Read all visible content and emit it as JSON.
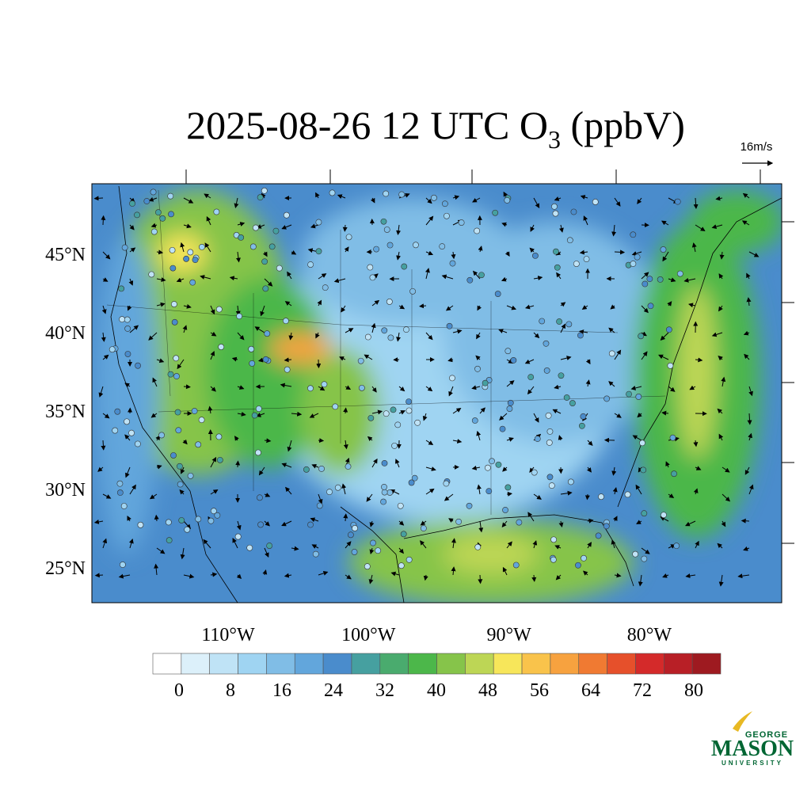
{
  "title": {
    "main": "2025-08-26 12 UTC O",
    "subscript": "3",
    "unit": "(ppbV)"
  },
  "vector_key": "16m/s",
  "map": {
    "lat_labels": [
      "45°N",
      "40°N",
      "35°N",
      "30°N",
      "25°N"
    ],
    "lon_labels": [
      "110°W",
      "100°W",
      "90°W",
      "80°W"
    ]
  },
  "colorbar": {
    "colors": [
      "#ffffff",
      "#dcf0fa",
      "#bfe3f6",
      "#9fd4f2",
      "#80bde6",
      "#62a6dc",
      "#4a8ccc",
      "#46a0a0",
      "#4aab6e",
      "#4cb74a",
      "#86c44a",
      "#bdd655",
      "#f7e65a",
      "#f9c34b",
      "#f7a23f",
      "#f07a32",
      "#e6502b",
      "#d42a2a",
      "#b81f26",
      "#9e1a20"
    ],
    "ticks": [
      0,
      8,
      16,
      24,
      32,
      40,
      48,
      56,
      64,
      72,
      80
    ]
  },
  "logo": {
    "top": "GEORGE",
    "name": "MASON",
    "bottom": "UNIVERSITY"
  }
}
